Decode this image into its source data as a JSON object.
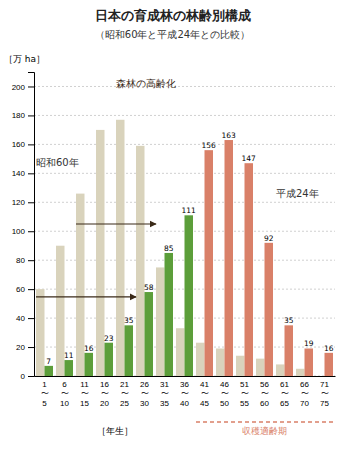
{
  "chart_data": {
    "type": "bar",
    "title": "日本の育成林の林齢別構成",
    "subtitle": "（昭和60年と平成24年との比較）",
    "ylabel": "［万 ha］",
    "xlabel": "［年生］",
    "categories": [
      "1\n〜\n5",
      "6\n〜\n10",
      "11\n〜\n15",
      "16\n〜\n20",
      "21\n〜\n25",
      "26\n〜\n30",
      "31\n〜\n35",
      "36\n〜\n40",
      "41\n〜\n45",
      "46\n〜\n50",
      "51\n〜\n55",
      "56\n〜\n60",
      "61\n〜\n65",
      "66\n〜\n70",
      "71\n〜\n75"
    ],
    "series": [
      {
        "name": "昭和60年",
        "color": "#d9d3bc",
        "values": [
          60,
          90,
          126,
          170,
          177,
          159,
          75,
          33,
          23,
          19,
          14,
          12,
          8,
          5,
          null
        ]
      },
      {
        "name": "平成24年",
        "colors": [
          "#5c9e3a",
          "#5c9e3a",
          "#5c9e3a",
          "#5c9e3a",
          "#5c9e3a",
          "#5c9e3a",
          "#5c9e3a",
          "#5c9e3a",
          "#d98068",
          "#d98068",
          "#d98068",
          "#d98068",
          "#d98068",
          "#d98068",
          "#d98068"
        ],
        "values": [
          7,
          11,
          16,
          23,
          35,
          58,
          85,
          111,
          156,
          163,
          147,
          92,
          35,
          19,
          16
        ],
        "data_labels": true
      }
    ],
    "annotations": [
      {
        "text": "森林の高齢化",
        "color": "#3a2a18"
      },
      {
        "text": "収穫適齢期",
        "color": "#d98068"
      }
    ],
    "ylim": [
      0,
      210
    ],
    "yticks": [
      0,
      20,
      40,
      60,
      80,
      100,
      120,
      140,
      160,
      180,
      200
    ],
    "grid": true
  }
}
